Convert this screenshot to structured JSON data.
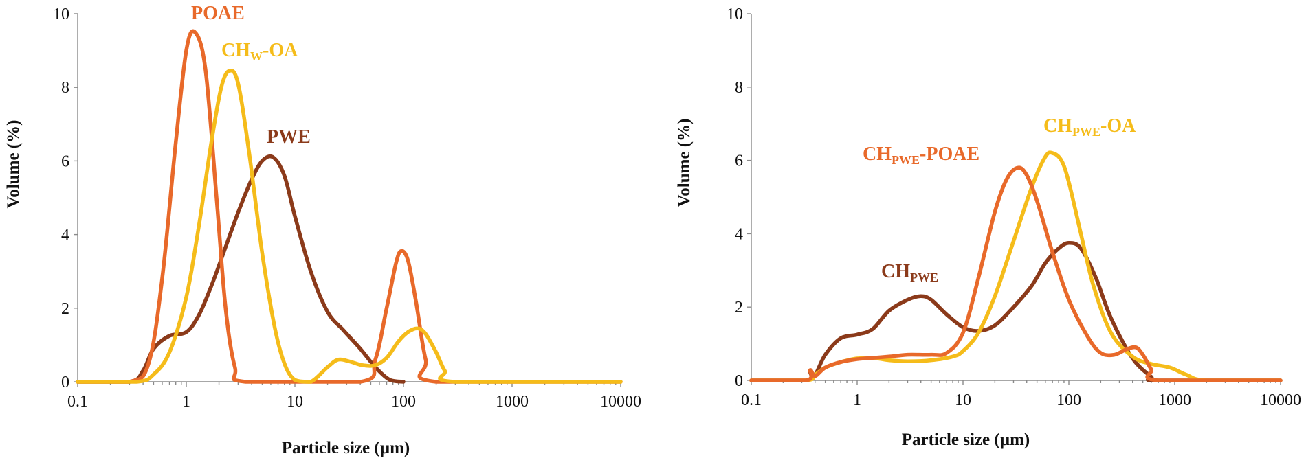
{
  "colors": {
    "dark_brown": "#8B3A1A",
    "orange": "#E8692A",
    "yellow": "#F5BC1A",
    "axis": "#8a8a8a"
  },
  "chart_data": [
    {
      "type": "line",
      "xscale": "log",
      "xlabel": "Particle size (µm)",
      "ylabel": "Volume (%)",
      "xlim": [
        0.1,
        10000
      ],
      "ylim": [
        0,
        10
      ],
      "x_ticks": [
        "0.1",
        "1",
        "10",
        "100",
        "1000",
        "10000"
      ],
      "y_ticks": [
        "0",
        "2",
        "4",
        "6",
        "8",
        "10"
      ],
      "series": [
        {
          "key": "pwe",
          "name": "PWE",
          "color": "#8B3A1A",
          "x": [
            0.1,
            0.3,
            0.4,
            0.5,
            0.7,
            1,
            1.3,
            1.7,
            2.2,
            3,
            4,
            5,
            6.3,
            8,
            10,
            14,
            20,
            28,
            40,
            55,
            75,
            100
          ],
          "y": [
            0,
            0,
            0.3,
            0.9,
            1.25,
            1.35,
            1.8,
            2.6,
            3.5,
            4.6,
            5.5,
            6.0,
            6.1,
            5.6,
            4.5,
            3.0,
            1.9,
            1.4,
            0.9,
            0.4,
            0.05,
            0
          ]
        },
        {
          "key": "poae",
          "name": "POAE",
          "color": "#E8692A",
          "x": [
            0.1,
            0.3,
            0.45,
            0.6,
            0.8,
            1,
            1.2,
            1.5,
            1.9,
            2.3,
            2.8,
            3.5,
            40,
            55,
            70,
            85,
            95,
            110,
            130,
            160,
            200,
            10000
          ],
          "y": [
            0,
            0,
            0.5,
            2.8,
            6.5,
            9.0,
            9.5,
            8.5,
            5.0,
            2.0,
            0.4,
            0,
            0,
            0.6,
            2.0,
            3.2,
            3.55,
            3.3,
            2.2,
            0.6,
            0,
            0
          ]
        },
        {
          "key": "chw_oa",
          "name": "CHW-OA",
          "color": "#F5BC1A",
          "x": [
            0.1,
            0.35,
            0.5,
            0.7,
            1,
            1.3,
            1.7,
            2.1,
            2.5,
            3,
            3.8,
            5,
            6.5,
            8,
            10,
            14,
            20,
            25,
            32,
            42,
            55,
            70,
            90,
            110,
            135,
            160,
            200,
            240,
            300,
            10000
          ],
          "y": [
            0,
            0,
            0.2,
            0.8,
            2.3,
            4.2,
            6.5,
            8.0,
            8.45,
            8.1,
            6.2,
            3.5,
            1.5,
            0.5,
            0.05,
            0,
            0.4,
            0.6,
            0.55,
            0.45,
            0.45,
            0.65,
            1.1,
            1.35,
            1.45,
            1.3,
            0.8,
            0.3,
            0,
            0
          ]
        }
      ],
      "annotations": [
        {
          "text": "POAE",
          "sub": "",
          "tail": "",
          "color": "#E8692A"
        },
        {
          "text": "CH",
          "sub": "W",
          "tail": "-OA",
          "color": "#F5BC1A"
        },
        {
          "text": "PWE",
          "sub": "",
          "tail": "",
          "color": "#8B3A1A"
        }
      ]
    },
    {
      "type": "line",
      "xscale": "log",
      "xlabel": "Particle size (µm)",
      "ylabel": "Volume (%)",
      "xlim": [
        0.1,
        10000
      ],
      "ylim": [
        0,
        10
      ],
      "x_ticks": [
        "0.1",
        "1",
        "10",
        "100",
        "1000",
        "10000"
      ],
      "y_ticks": [
        "0",
        "2",
        "4",
        "6",
        "8",
        "10"
      ],
      "series": [
        {
          "key": "chpwe",
          "name": "CHPWE",
          "color": "#8B3A1A",
          "x": [
            0.1,
            0.33,
            0.36,
            0.4,
            0.5,
            0.7,
            1,
            1.4,
            2,
            3,
            4,
            5,
            7,
            10,
            14,
            20,
            30,
            45,
            60,
            80,
            100,
            130,
            180,
            250,
            400,
            600,
            700,
            10000
          ],
          "y": [
            0,
            0,
            0.25,
            0.15,
            0.7,
            1.15,
            1.25,
            1.4,
            1.9,
            2.2,
            2.3,
            2.2,
            1.8,
            1.45,
            1.35,
            1.5,
            2.0,
            2.6,
            3.2,
            3.6,
            3.75,
            3.6,
            2.8,
            1.7,
            0.6,
            0.1,
            0,
            0
          ]
        },
        {
          "key": "chpwe_oa",
          "name": "CHPWE-OA",
          "color": "#F5BC1A",
          "x": [
            0.1,
            0.33,
            0.4,
            0.5,
            0.7,
            1,
            1.5,
            2,
            3,
            5,
            8,
            10,
            14,
            20,
            30,
            45,
            60,
            70,
            85,
            100,
            130,
            170,
            250,
            400,
            600,
            900,
            1300,
            2000,
            10000
          ],
          "y": [
            0,
            0,
            0.15,
            0.35,
            0.5,
            0.6,
            0.6,
            0.55,
            0.52,
            0.55,
            0.65,
            0.8,
            1.3,
            2.3,
            3.8,
            5.3,
            6.1,
            6.2,
            6.0,
            5.4,
            4.0,
            2.6,
            1.3,
            0.65,
            0.45,
            0.35,
            0.15,
            0,
            0
          ]
        },
        {
          "key": "chpwe_poae",
          "name": "CHPWE-POAE",
          "color": "#E8692A",
          "x": [
            0.1,
            0.33,
            0.36,
            0.4,
            0.5,
            0.7,
            1,
            1.5,
            2,
            3,
            5,
            7,
            10,
            14,
            20,
            26,
            33,
            40,
            50,
            70,
            100,
            150,
            200,
            270,
            350,
            430,
            500,
            600,
            700,
            10000
          ],
          "y": [
            0,
            0,
            0.28,
            0.12,
            0.35,
            0.5,
            0.58,
            0.62,
            0.65,
            0.7,
            0.7,
            0.75,
            1.3,
            2.8,
            4.6,
            5.5,
            5.8,
            5.6,
            4.9,
            3.5,
            2.2,
            1.2,
            0.75,
            0.7,
            0.85,
            0.9,
            0.7,
            0.3,
            0,
            0
          ]
        }
      ],
      "annotations": [
        {
          "text": "CH",
          "sub": "PWE",
          "tail": "-OA",
          "color": "#F5BC1A"
        },
        {
          "text": "CH",
          "sub": "PWE",
          "tail": "-POAE",
          "color": "#E8692A"
        },
        {
          "text": "CH",
          "sub": "PWE",
          "tail": "",
          "color": "#8B3A1A"
        }
      ]
    }
  ]
}
